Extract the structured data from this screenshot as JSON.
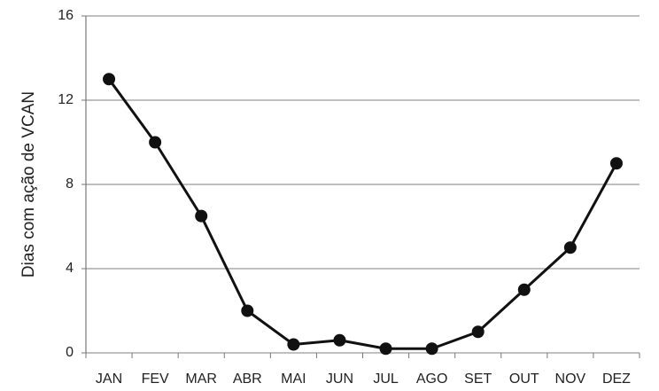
{
  "chart_data": {
    "type": "line",
    "y_label": "Dias com ação de VCAN",
    "categories": [
      "JAN",
      "FEV",
      "MAR",
      "ABR",
      "MAI",
      "JUN",
      "JUL",
      "AGO",
      "SET",
      "OUT",
      "NOV",
      "DEZ"
    ],
    "values": [
      13,
      10,
      6.5,
      2,
      0.4,
      0.6,
      0.2,
      0.2,
      1,
      3,
      5,
      9
    ],
    "color": "#111111",
    "ylim": [
      0,
      16
    ],
    "yticks": [
      0,
      4,
      8,
      12,
      16
    ],
    "grid": true
  }
}
